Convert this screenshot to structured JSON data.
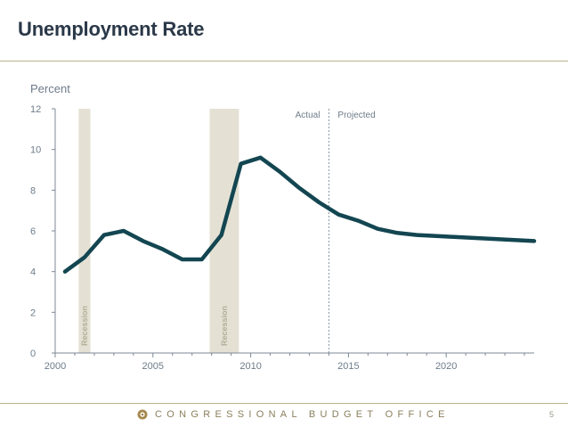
{
  "slide": {
    "title": "Unemployment Rate",
    "footer_text": "CONGRESSIONAL BUDGET OFFICE",
    "page_number": "5"
  },
  "colors": {
    "line": "#134651",
    "recession": "#e4e1d4",
    "axis": "#7d8894",
    "rule": "#b9b28c"
  },
  "chart_data": {
    "type": "line",
    "y_unit_label": "Percent",
    "xlim": [
      2000,
      2024.5
    ],
    "ylim": [
      0,
      12
    ],
    "x_ticks": [
      2000,
      2005,
      2010,
      2015,
      2020
    ],
    "x_tick_labels": [
      "2000",
      "2005",
      "2010",
      "2015",
      "2020"
    ],
    "y_ticks": [
      0,
      2,
      4,
      6,
      8,
      10,
      12
    ],
    "y_tick_labels": [
      "0",
      "2",
      "4",
      "6",
      "8",
      "10",
      "12"
    ],
    "grid": false,
    "series": [
      {
        "x": [
          2000.5,
          2001.5,
          2002.5,
          2003.5,
          2004.5,
          2005.5,
          2006.5,
          2007.5,
          2008.5,
          2009.5,
          2010.5,
          2011.5,
          2012.5,
          2013.5,
          2014.5,
          2015.5,
          2016.5,
          2017.5,
          2018.5,
          2019.5,
          2020.5,
          2021.5,
          2022.5,
          2023.5,
          2024.5
        ],
        "values": [
          4.0,
          4.7,
          5.8,
          6.0,
          5.5,
          5.1,
          4.6,
          4.6,
          5.8,
          9.3,
          9.6,
          8.9,
          8.1,
          7.4,
          6.8,
          6.5,
          6.1,
          5.9,
          5.8,
          5.75,
          5.7,
          5.65,
          5.6,
          5.55,
          5.5
        ]
      }
    ],
    "recessions": [
      {
        "start": 2001.2,
        "end": 2001.8,
        "label": "Recession"
      },
      {
        "start": 2007.9,
        "end": 2009.4,
        "label": "Recession"
      }
    ],
    "actual_projected_divider": 2014.0,
    "divider_labels": {
      "left": "Actual",
      "right": "Projected"
    }
  }
}
